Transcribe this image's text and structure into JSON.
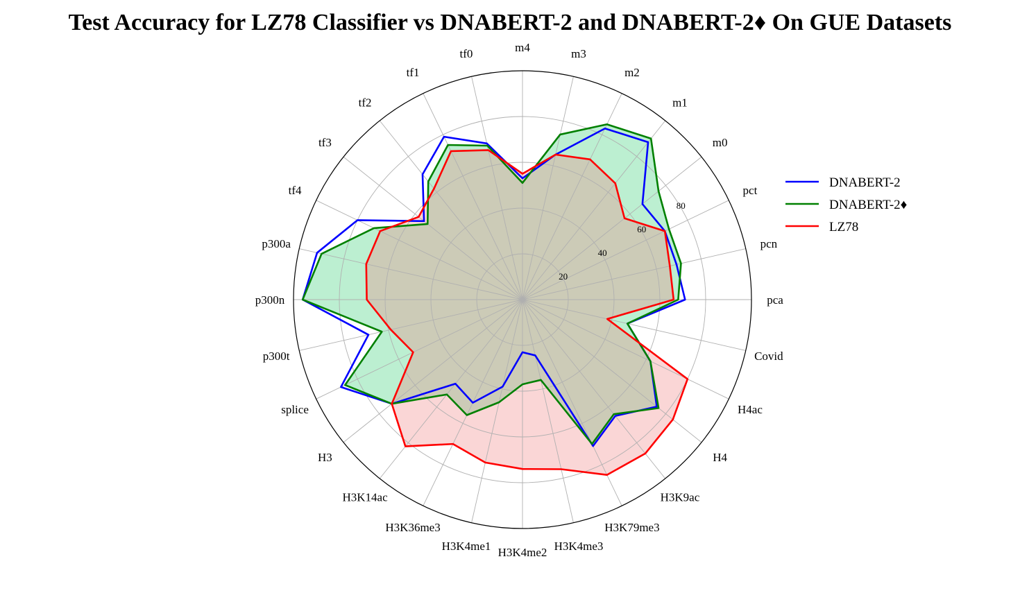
{
  "chart_data": {
    "type": "radar",
    "title": "Test Accuracy for LZ78 Classifier vs DNABERT-2 and DNABERT-2♦ On GUE Datasets",
    "categories": [
      "m4",
      "m3",
      "m2",
      "m1",
      "m0",
      "pct",
      "pcn",
      "pca",
      "Covid",
      "H4ac",
      "H4",
      "H3K9ac",
      "H3K79me3",
      "H3K4me3",
      "H3K4me2",
      "H3K4me1",
      "H3K36me3",
      "H3K14ac",
      "H3",
      "splice",
      "p300t",
      "p300n",
      "p300a",
      "tf4",
      "tf3",
      "tf2",
      "tf1",
      "tf0"
    ],
    "rlim": [
      0,
      100
    ],
    "radial_ticks": [
      20,
      40,
      60,
      80
    ],
    "grid": true,
    "legend_position": "right",
    "series": [
      {
        "name": "DNABERT-2",
        "color": "#0000ff",
        "fill": false,
        "values": [
          53,
          65,
          83,
          88,
          67,
          69,
          69,
          71,
          47,
          62,
          75,
          65,
          71,
          25,
          23,
          39,
          50,
          47,
          73,
          88,
          69,
          96,
          92,
          80,
          55,
          70,
          79,
          70
        ]
      },
      {
        "name": "DNABERT-2♦",
        "color": "#008000",
        "fill": true,
        "fill_color": "#2ecc71",
        "values": [
          51,
          74,
          85,
          90,
          76,
          71,
          71,
          68,
          47,
          62,
          76,
          64,
          70,
          36,
          37,
          46,
          56,
          53,
          73,
          86,
          63,
          96,
          90,
          72,
          53,
          66,
          75,
          69
        ]
      },
      {
        "name": "LZ78",
        "color": "#ff0000",
        "fill": true,
        "fill_color": "#f08080",
        "values": [
          55,
          65,
          68,
          65,
          57,
          69,
          66,
          66,
          38,
          80,
          84,
          86,
          85,
          76,
          74,
          73,
          70,
          82,
          73,
          53,
          59,
          68,
          70,
          69,
          58,
          62,
          72,
          67
        ]
      }
    ]
  }
}
